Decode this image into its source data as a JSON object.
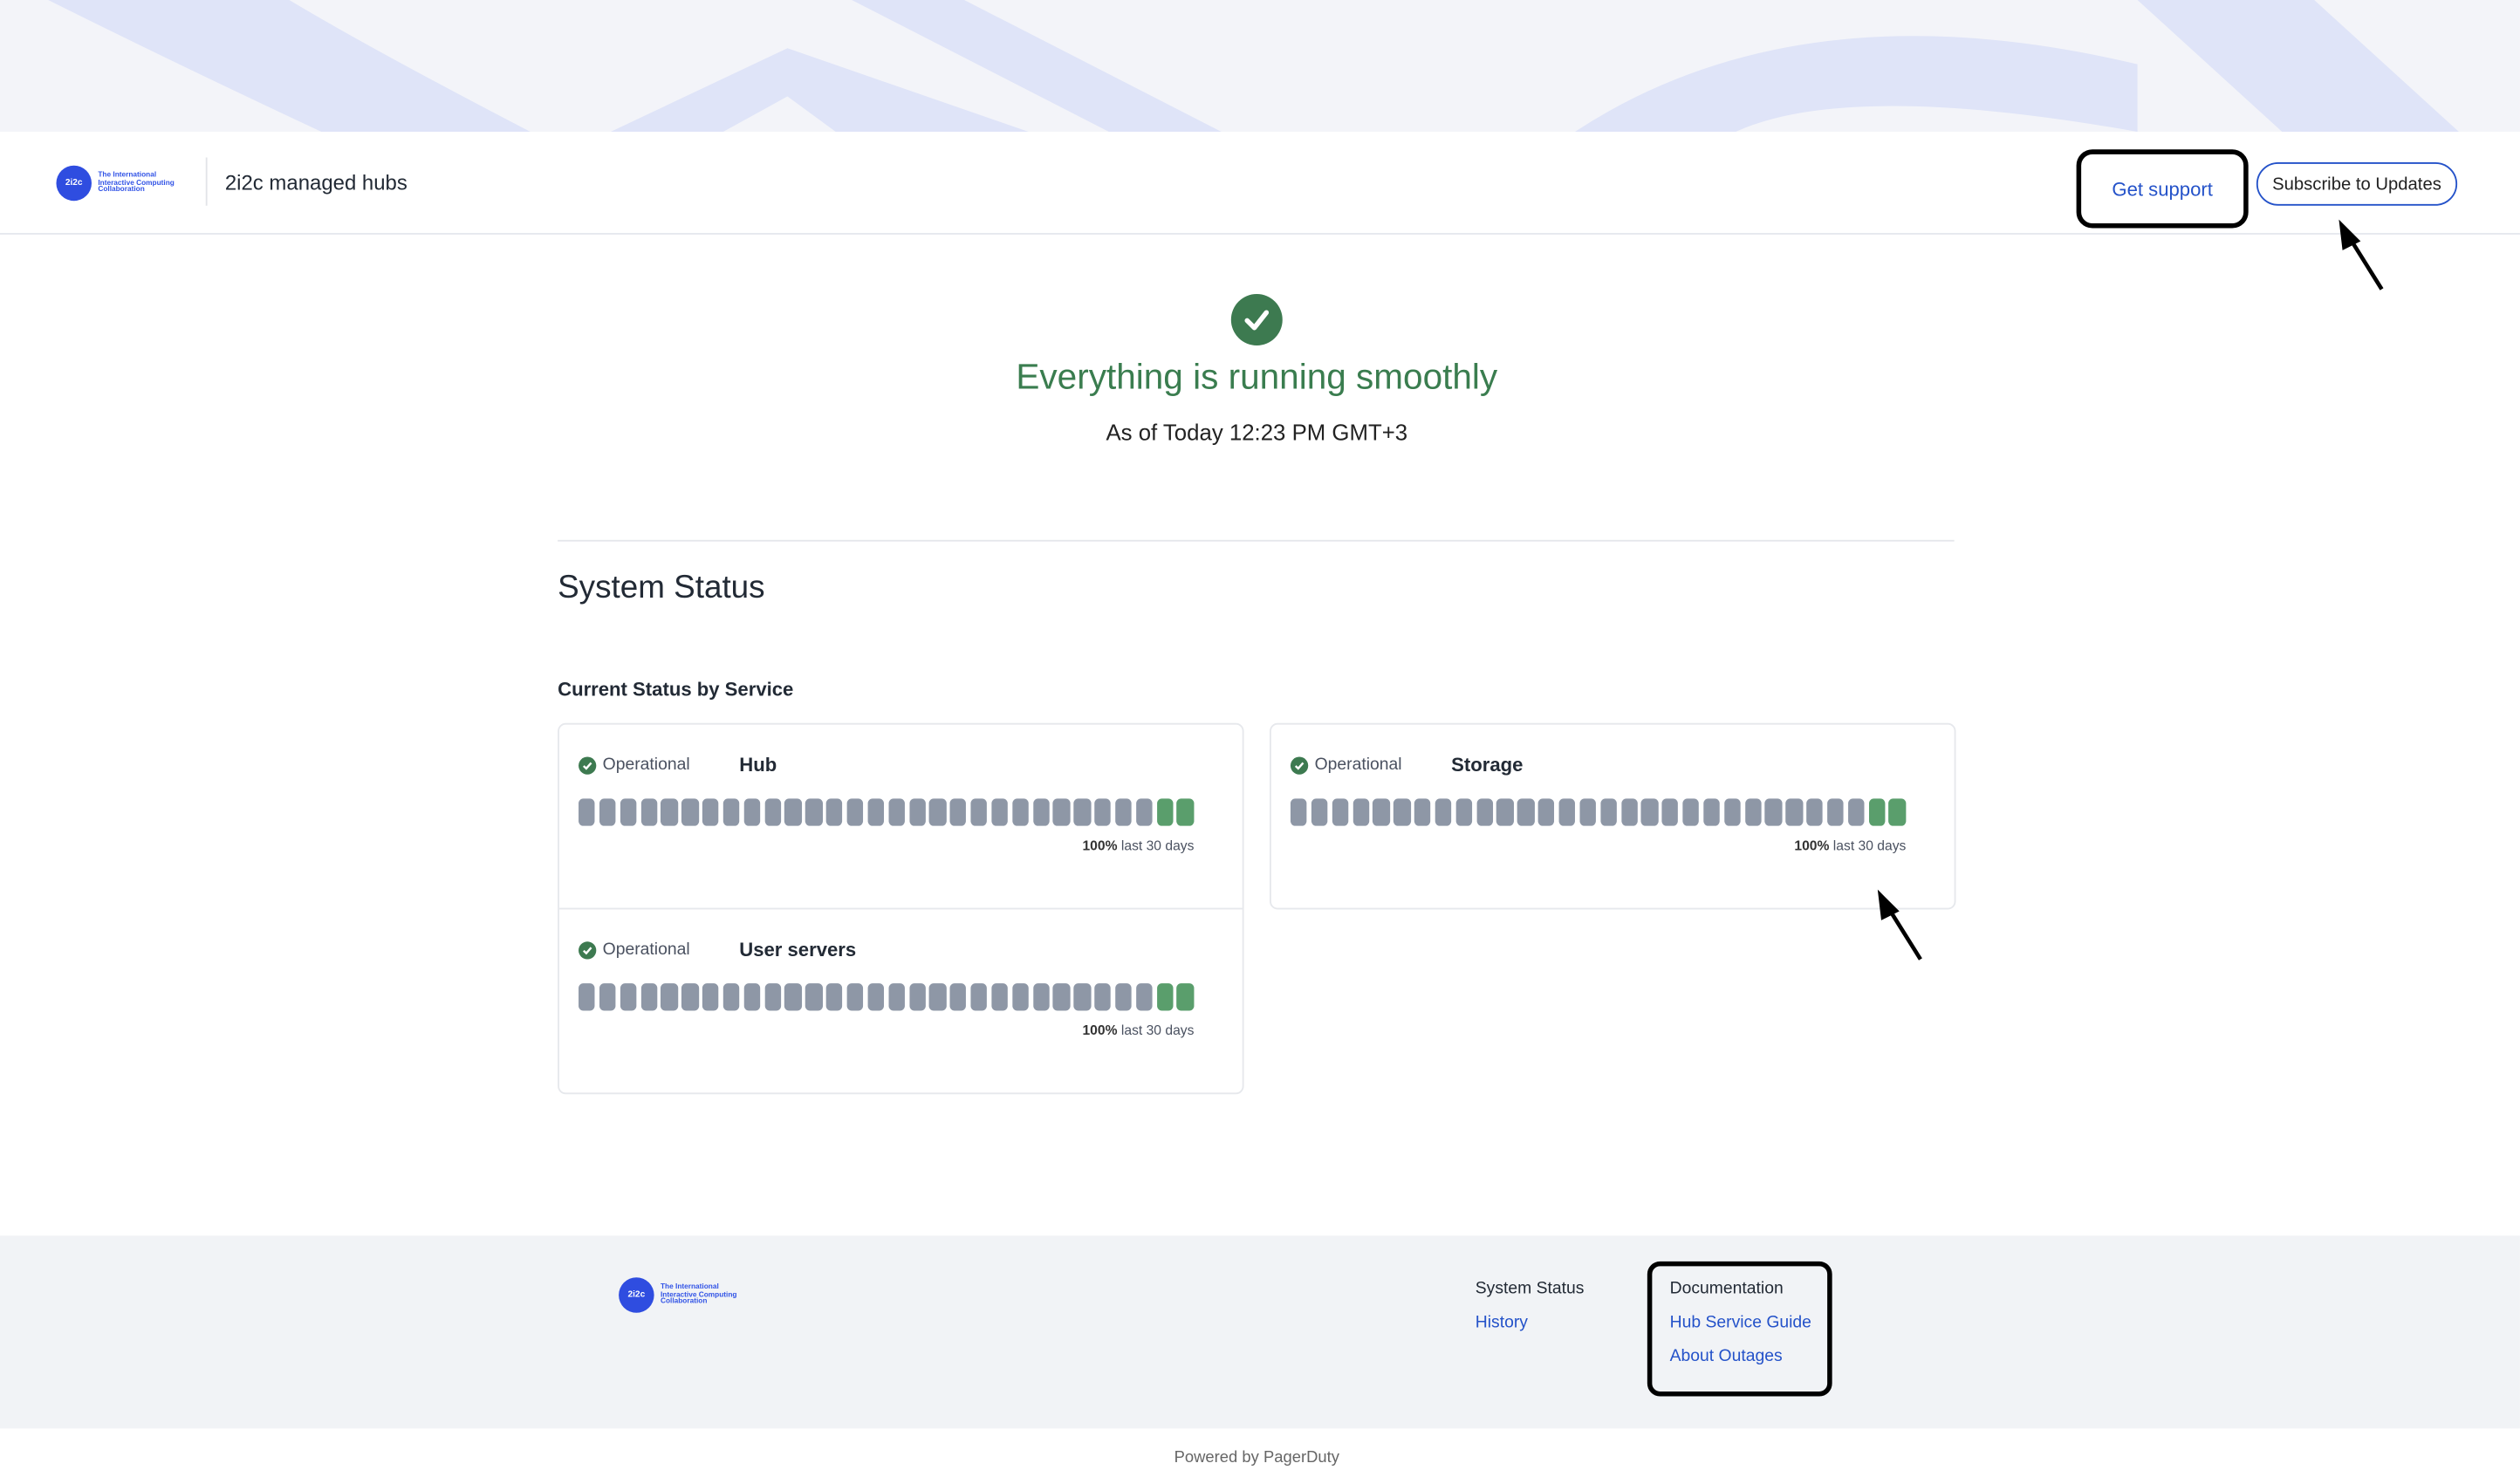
{
  "header": {
    "logo_text": "The International Interactive Computing Collaboration",
    "logo_mark": "2i2c",
    "title": "2i2c managed hubs",
    "get_support": "Get support",
    "subscribe": "Subscribe to Updates"
  },
  "hero": {
    "icon": "check-circle-icon",
    "headline": "Everything is running smoothly",
    "as_of": "As of Today 12:23 PM GMT+3"
  },
  "main": {
    "section_title": "System Status",
    "subsection_title": "Current Status by Service",
    "services": [
      {
        "status": "Operational",
        "name": "Hub",
        "uptime_pct": "100%",
        "uptime_label": "last 30 days",
        "days": [
          "no-data",
          "no-data",
          "no-data",
          "no-data",
          "no-data",
          "no-data",
          "no-data",
          "no-data",
          "no-data",
          "no-data",
          "no-data",
          "no-data",
          "no-data",
          "no-data",
          "no-data",
          "no-data",
          "no-data",
          "no-data",
          "no-data",
          "no-data",
          "no-data",
          "no-data",
          "no-data",
          "no-data",
          "no-data",
          "no-data",
          "no-data",
          "no-data",
          "up",
          "up"
        ]
      },
      {
        "status": "Operational",
        "name": "User servers",
        "uptime_pct": "100%",
        "uptime_label": "last 30 days",
        "days": [
          "no-data",
          "no-data",
          "no-data",
          "no-data",
          "no-data",
          "no-data",
          "no-data",
          "no-data",
          "no-data",
          "no-data",
          "no-data",
          "no-data",
          "no-data",
          "no-data",
          "no-data",
          "no-data",
          "no-data",
          "no-data",
          "no-data",
          "no-data",
          "no-data",
          "no-data",
          "no-data",
          "no-data",
          "no-data",
          "no-data",
          "no-data",
          "no-data",
          "up",
          "up"
        ]
      },
      {
        "status": "Operational",
        "name": "Storage",
        "uptime_pct": "100%",
        "uptime_label": "last 30 days",
        "days": [
          "no-data",
          "no-data",
          "no-data",
          "no-data",
          "no-data",
          "no-data",
          "no-data",
          "no-data",
          "no-data",
          "no-data",
          "no-data",
          "no-data",
          "no-data",
          "no-data",
          "no-data",
          "no-data",
          "no-data",
          "no-data",
          "no-data",
          "no-data",
          "no-data",
          "no-data",
          "no-data",
          "no-data",
          "no-data",
          "no-data",
          "no-data",
          "no-data",
          "up",
          "up"
        ]
      }
    ]
  },
  "footer": {
    "col1_title": "System Status",
    "col1_links": [
      "History"
    ],
    "col2_title": "Documentation",
    "col2_links": [
      "Hub Service Guide",
      "About Outages"
    ],
    "powered_by": "Powered by PagerDuty"
  },
  "colors": {
    "operational": "#3d7a50",
    "bar_up": "#5a9e6c",
    "bar_no_data": "#8e97a6",
    "link": "#2452c9"
  }
}
